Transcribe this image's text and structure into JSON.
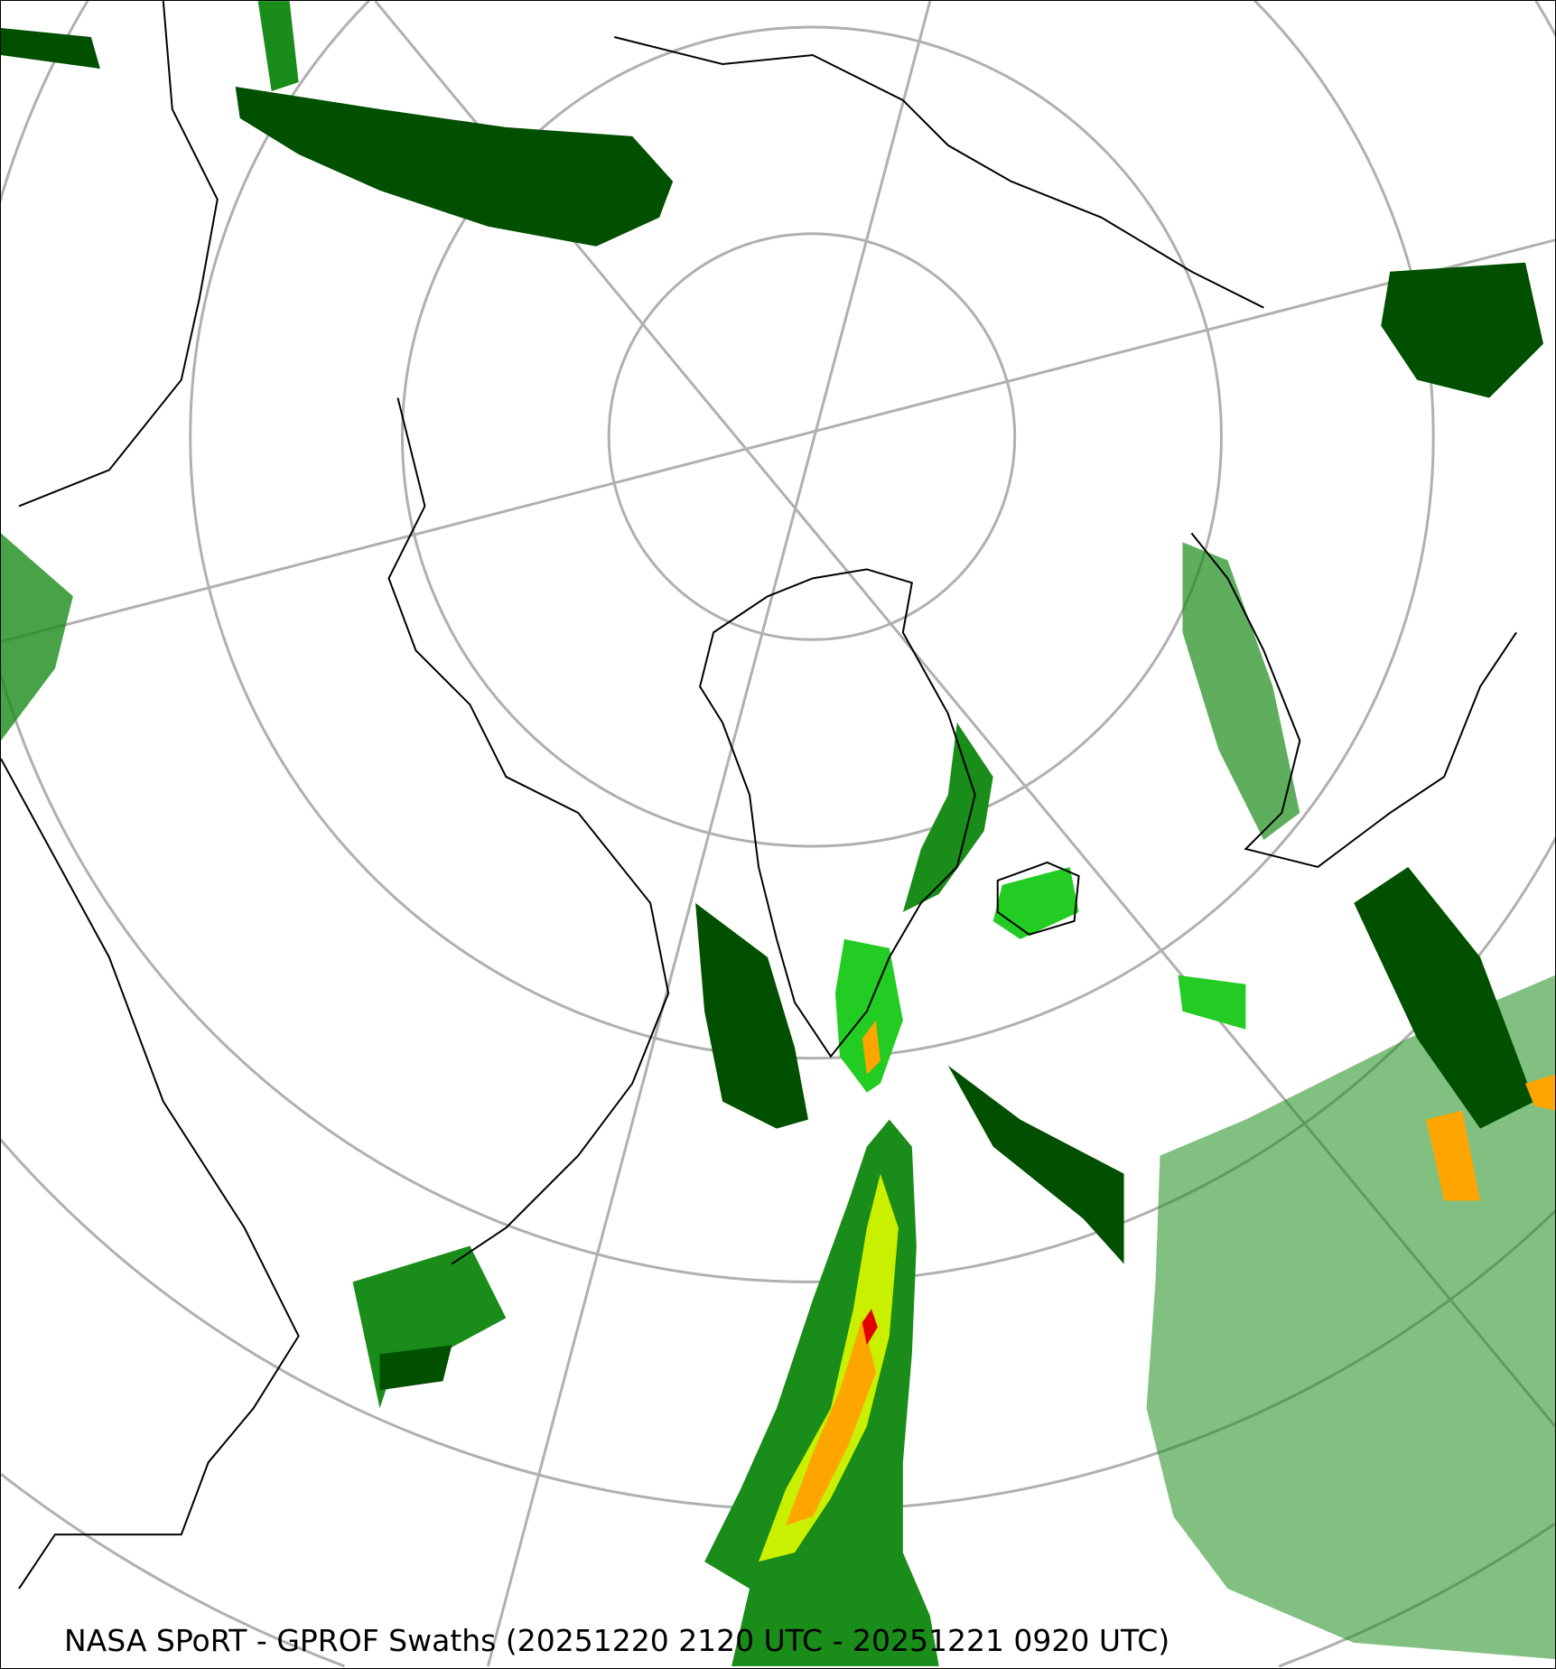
{
  "caption": "NASA SPoRT - GPROF Swaths (20251220 2120 UTC - 20251221 0920 UTC)",
  "map": {
    "projection": "north-polar-stereographic",
    "layer": "GPROF precipitation swaths",
    "colors": {
      "light": "#005000",
      "moderate": "#1a8c1a",
      "heavier": "#22cc22",
      "heavy": "#c8f000",
      "very_heavy": "#ffa500",
      "extreme": "#e00000",
      "grid": "#b0b0b0",
      "coastline": "#000000"
    }
  }
}
